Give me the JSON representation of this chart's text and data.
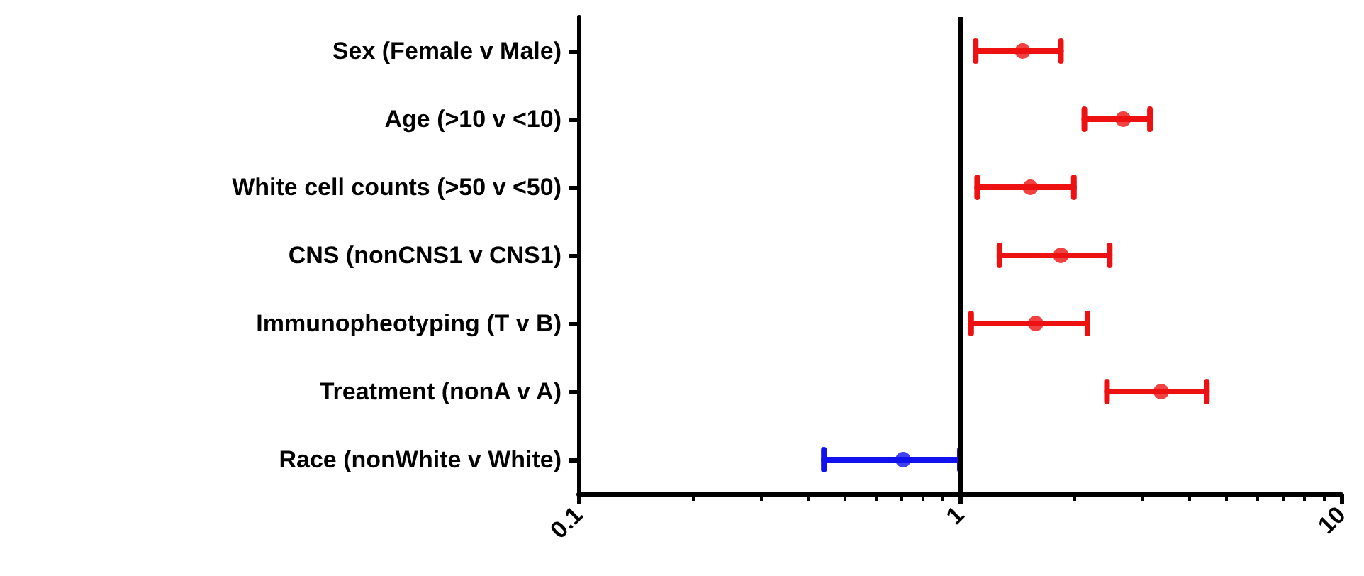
{
  "chart_data": {
    "type": "scatter",
    "orientation": "horizontal",
    "categories": [
      "Sex (Female v Male)",
      "Age (>10 v <10)",
      "White cell counts (>50 v <50)",
      "CNS (nonCNS1 v CNS1)",
      "Immunopheotyping (T v B)",
      "Treatment (nonA v A)",
      "Race (nonWhite v White)"
    ],
    "series": [
      {
        "values": [
          1.46,
          2.68,
          1.53,
          1.84,
          1.58,
          3.37,
          0.71
        ],
        "colors": [
          "#ee1111",
          "#ee1111",
          "#ee1111",
          "#ee1111",
          "#ee1111",
          "#ee1111",
          "#1111ee"
        ],
        "errors": [
          [
            1.1,
            1.84
          ],
          [
            2.12,
            3.15
          ],
          [
            1.11,
            1.99
          ],
          [
            1.27,
            2.47
          ],
          [
            1.07,
            2.16
          ],
          [
            2.43,
            4.44
          ],
          [
            0.44,
            1.0
          ]
        ]
      }
    ],
    "log": "x",
    "xlim": [
      0.1,
      10
    ],
    "xticks": [
      0.1,
      1,
      10
    ],
    "marker": "circle",
    "grid": false,
    "ref_lines": [
      {
        "axis": "x",
        "value": 1,
        "color": "#000000"
      }
    ]
  }
}
